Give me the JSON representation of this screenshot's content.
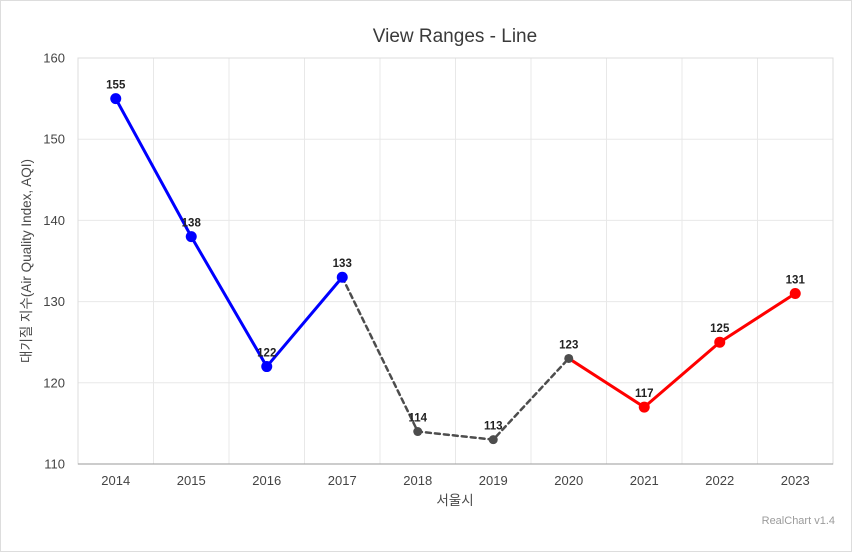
{
  "watermark": {
    "label": "RealChart v1.4"
  },
  "chart_data": {
    "type": "line",
    "title": "View Ranges - Line",
    "xlabel": "서울시",
    "ylabel": "대기질 지수(Air Quality Index, AQI)",
    "categories": [
      "2014",
      "2015",
      "2016",
      "2017",
      "2018",
      "2019",
      "2020",
      "2021",
      "2022",
      "2023"
    ],
    "values": [
      155,
      138,
      122,
      133,
      114,
      113,
      123,
      117,
      125,
      131
    ],
    "ylim": [
      110,
      160
    ],
    "yticks": [
      110,
      120,
      130,
      140,
      150,
      160
    ],
    "grid": "on",
    "legend": "none",
    "segments": [
      {
        "name": "range-blue",
        "from": 0,
        "to": 3,
        "marker_from": 0,
        "marker_to": 3,
        "color": "#0000ff",
        "dashed": false,
        "line_width": 3,
        "marker_radius": 5.5
      },
      {
        "name": "range-gray-dashed",
        "from": 3,
        "to": 6,
        "marker_from": 4,
        "marker_to": 6,
        "color": "#4d4d4d",
        "dashed": true,
        "line_width": 2.5,
        "marker_radius": 4.5
      },
      {
        "name": "range-red",
        "from": 6,
        "to": 9,
        "marker_from": 7,
        "marker_to": 9,
        "color": "#ff0000",
        "dashed": false,
        "line_width": 3,
        "marker_radius": 5.5
      }
    ],
    "colors": {
      "grid_line": "#e8e8e8",
      "plot_border": "#dcdcdc",
      "axis_line": "#9a9a9a",
      "tick_text": "#444444",
      "title_text": "#3a3a3a",
      "data_label_text": "#222222",
      "watermark_text": "#9b9b9b"
    }
  }
}
